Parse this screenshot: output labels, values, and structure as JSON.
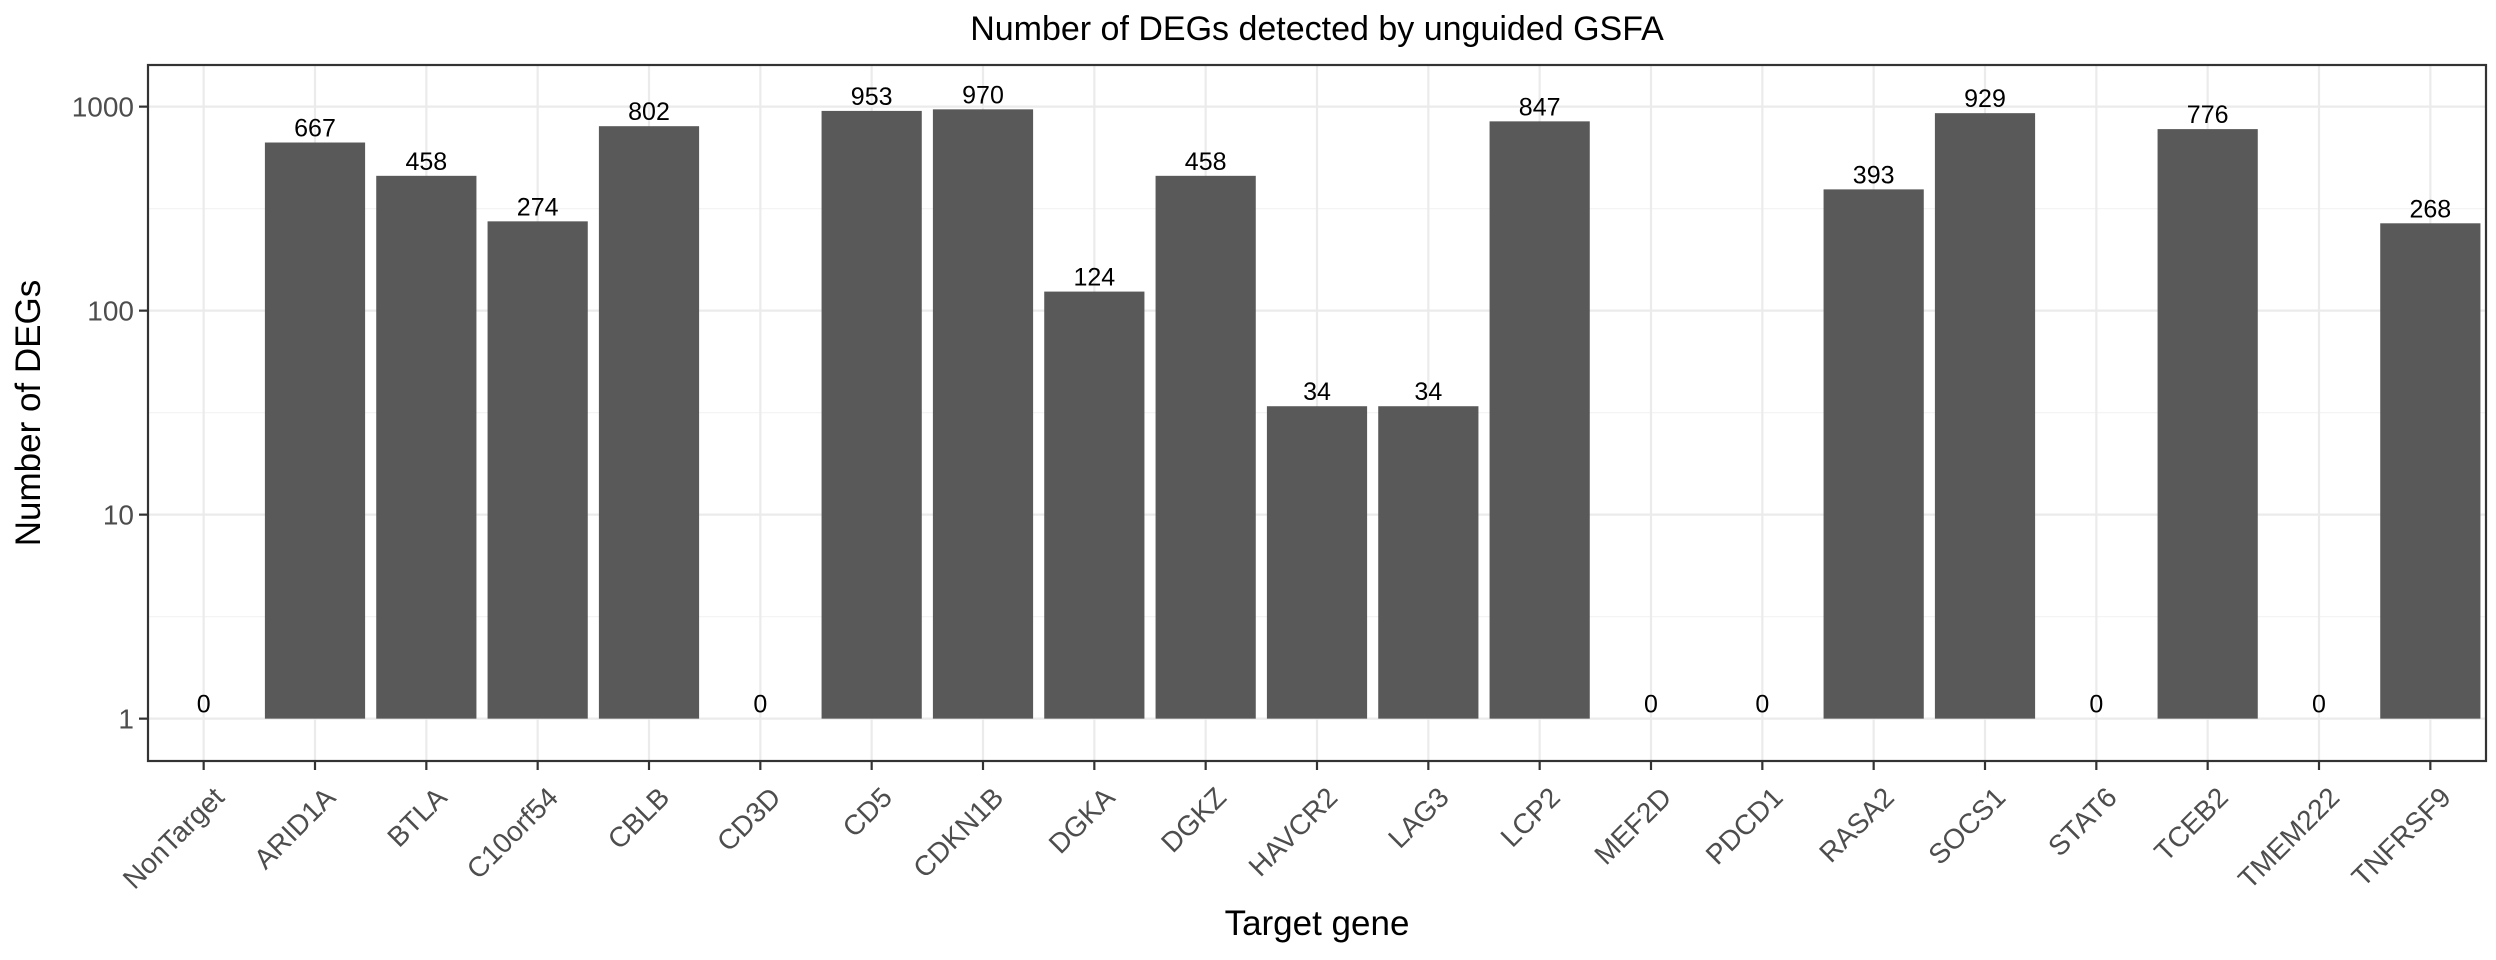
{
  "chart_data": {
    "type": "bar",
    "title": "Number of DEGs detected by unguided GSFA",
    "xlabel": "Target gene",
    "ylabel": "Number of DEGs",
    "y_scale": "log10",
    "ylim": [
      0.62,
      1600
    ],
    "y_ticks": [
      1,
      10,
      100,
      1000
    ],
    "y_tick_labels": [
      "1",
      "10",
      "100",
      "1000"
    ],
    "bar_base": 1,
    "categories": [
      "NonTarget",
      "ARID1A",
      "BTLA",
      "C10orf54",
      "CBLB",
      "CD3D",
      "CD5",
      "CDKN1B",
      "DGKA",
      "DGKZ",
      "HAVCR2",
      "LAG3",
      "LCP2",
      "MEF2D",
      "PDCD1",
      "RASA2",
      "SOCS1",
      "STAT6",
      "TCEB2",
      "TMEM222",
      "TNFRSF9"
    ],
    "values": [
      0,
      667,
      458,
      274,
      802,
      0,
      953,
      970,
      124,
      458,
      34,
      34,
      847,
      0,
      0,
      393,
      929,
      0,
      776,
      0,
      268
    ],
    "data_labels": [
      "0",
      "667",
      "458",
      "274",
      "802",
      "0",
      "953",
      "970",
      "124",
      "458",
      "34",
      "34",
      "847",
      "0",
      "0",
      "393",
      "929",
      "0",
      "776",
      "0",
      "268"
    ],
    "bar_color": "#595959",
    "grid": true,
    "legend": "none"
  }
}
